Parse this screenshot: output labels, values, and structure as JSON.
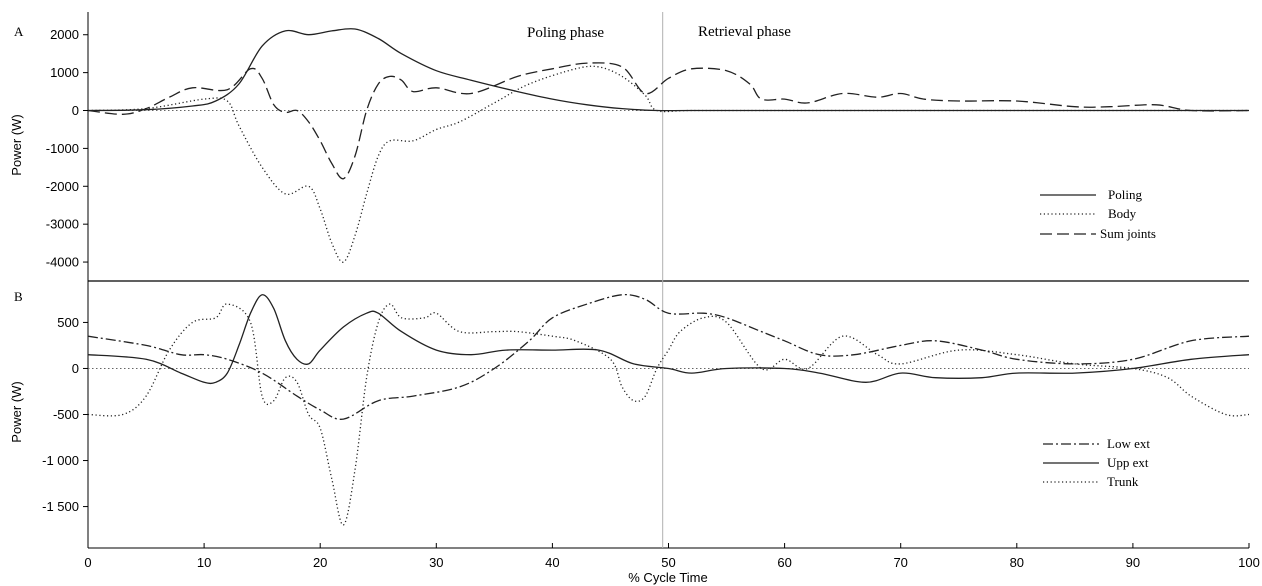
{
  "chart_data": [
    {
      "panel": "A",
      "type": "line",
      "ylabel": "Power (W)",
      "xlabel": "",
      "xlim": [
        0,
        100
      ],
      "ylim": [
        -4500,
        2600
      ],
      "yticks": [
        2000,
        1000,
        0,
        -1000,
        -2000,
        -3000,
        -4000
      ],
      "ytick_labels": [
        "2000",
        "1000",
        "0",
        "-1000",
        "-2000",
        "-3000",
        "-4000"
      ],
      "phase_labels": [
        "Poling phase",
        "Retrieval phase"
      ],
      "phase_divider_x": 49.5,
      "zero_line": true,
      "grid": false,
      "legend_position": "right",
      "series": [
        {
          "name": "Poling",
          "style": "solid",
          "x": [
            0,
            5,
            9,
            11,
            13,
            15,
            17,
            19,
            21,
            23,
            25,
            27,
            30,
            33,
            37,
            40,
            43,
            46,
            49,
            52,
            60,
            70,
            80,
            90,
            100
          ],
          "y": [
            0,
            20,
            120,
            250,
            700,
            1700,
            2100,
            2000,
            2100,
            2150,
            1900,
            1500,
            1050,
            800,
            500,
            300,
            150,
            50,
            0,
            0,
            0,
            0,
            0,
            0,
            0
          ]
        },
        {
          "name": "Body",
          "style": "dotted",
          "x": [
            0,
            5,
            10,
            12,
            13,
            15,
            17,
            19,
            20,
            21,
            22,
            23,
            24,
            25,
            26,
            28,
            30,
            32,
            35,
            38,
            42,
            44,
            46,
            48,
            49,
            52,
            60,
            70,
            80,
            90,
            100
          ],
          "y": [
            0,
            50,
            300,
            250,
            -400,
            -1500,
            -2200,
            -2000,
            -2600,
            -3500,
            -4000,
            -3300,
            -2200,
            -1200,
            -800,
            -800,
            -500,
            -300,
            200,
            700,
            1100,
            1150,
            900,
            400,
            0,
            0,
            0,
            0,
            0,
            0,
            0
          ]
        },
        {
          "name": "Sum joints",
          "style": "dashed",
          "x": [
            0,
            3,
            5,
            7,
            9,
            12,
            14,
            15,
            16,
            17,
            18,
            19,
            20,
            21,
            22,
            23,
            24,
            25,
            26,
            27,
            28,
            30,
            33,
            37,
            40,
            43,
            46,
            48,
            50,
            52,
            55,
            57,
            58,
            60,
            62,
            65,
            68,
            70,
            72,
            75,
            80,
            85,
            88,
            92,
            95,
            100
          ],
          "y": [
            0,
            -100,
            50,
            350,
            600,
            550,
            1100,
            850,
            150,
            -50,
            0,
            -300,
            -800,
            -1400,
            -1800,
            -1200,
            0,
            700,
            900,
            800,
            500,
            600,
            450,
            900,
            1100,
            1250,
            1150,
            450,
            850,
            1100,
            1050,
            700,
            300,
            300,
            200,
            450,
            350,
            450,
            300,
            250,
            250,
            100,
            100,
            150,
            0,
            0
          ]
        }
      ]
    },
    {
      "panel": "B",
      "type": "line",
      "ylabel": "Power (W)",
      "xlabel": "% Cycle Time",
      "xlim": [
        0,
        100
      ],
      "ylim": [
        -1950,
        950
      ],
      "xticks": [
        0,
        10,
        20,
        30,
        40,
        50,
        60,
        70,
        80,
        90,
        100
      ],
      "xtick_labels": [
        "0",
        "10",
        "20",
        "30",
        "40",
        "50",
        "60",
        "70",
        "80",
        "90",
        "100"
      ],
      "yticks": [
        500,
        0,
        -500,
        -1000,
        -1500
      ],
      "ytick_labels": [
        "500",
        "0",
        "-500",
        "-1 000",
        "-1 500"
      ],
      "phase_divider_x": 49.5,
      "zero_line": true,
      "grid": false,
      "legend_position": "bottom-right",
      "series": [
        {
          "name": "Low ext",
          "style": "dashdot",
          "x": [
            0,
            5,
            8,
            10,
            12,
            15,
            18,
            20,
            22,
            25,
            28,
            32,
            35,
            38,
            40,
            43,
            46,
            48,
            50,
            53,
            55,
            58,
            60,
            63,
            66,
            70,
            73,
            77,
            80,
            85,
            90,
            95,
            100
          ],
          "y": [
            350,
            250,
            150,
            150,
            100,
            -50,
            -300,
            -450,
            -550,
            -350,
            -300,
            -200,
            0,
            300,
            550,
            700,
            800,
            750,
            600,
            600,
            550,
            400,
            300,
            150,
            150,
            250,
            300,
            200,
            100,
            50,
            100,
            300,
            350
          ]
        },
        {
          "name": "Upp ext",
          "style": "solid",
          "x": [
            0,
            5,
            8,
            10,
            11,
            12,
            13,
            14,
            15,
            16,
            17,
            18,
            19,
            20,
            22,
            24,
            25,
            27,
            30,
            33,
            36,
            40,
            44,
            47,
            50,
            52,
            55,
            60,
            63,
            67,
            70,
            73,
            77,
            80,
            85,
            90,
            95,
            100
          ],
          "y": [
            150,
            100,
            -50,
            -150,
            -150,
            -50,
            250,
            600,
            800,
            650,
            300,
            100,
            50,
            200,
            450,
            600,
            600,
            400,
            200,
            150,
            200,
            200,
            200,
            50,
            0,
            -50,
            0,
            0,
            -50,
            -150,
            -50,
            -100,
            -100,
            -50,
            -50,
            0,
            100,
            150
          ]
        },
        {
          "name": "Trunk",
          "style": "dotted",
          "x": [
            0,
            3,
            5,
            7,
            9,
            11,
            12,
            14,
            15,
            16,
            17,
            18,
            19,
            20,
            21,
            22,
            23,
            24,
            25,
            26,
            27,
            29,
            30,
            32,
            35,
            37,
            40,
            42,
            45,
            46,
            47,
            48,
            49,
            50,
            51,
            53,
            55,
            58,
            60,
            62,
            65,
            68,
            70,
            75,
            80,
            85,
            90,
            93,
            95,
            98,
            100
          ],
          "y": [
            -500,
            -500,
            -300,
            200,
            500,
            550,
            700,
            500,
            -300,
            -350,
            -100,
            -150,
            -500,
            -650,
            -1200,
            -1700,
            -1100,
            -100,
            500,
            700,
            550,
            550,
            600,
            400,
            400,
            400,
            350,
            300,
            100,
            -200,
            -350,
            -300,
            0,
            200,
            400,
            550,
            500,
            0,
            100,
            0,
            350,
            150,
            50,
            200,
            150,
            50,
            0,
            -100,
            -300,
            -500,
            -500
          ]
        }
      ]
    }
  ]
}
